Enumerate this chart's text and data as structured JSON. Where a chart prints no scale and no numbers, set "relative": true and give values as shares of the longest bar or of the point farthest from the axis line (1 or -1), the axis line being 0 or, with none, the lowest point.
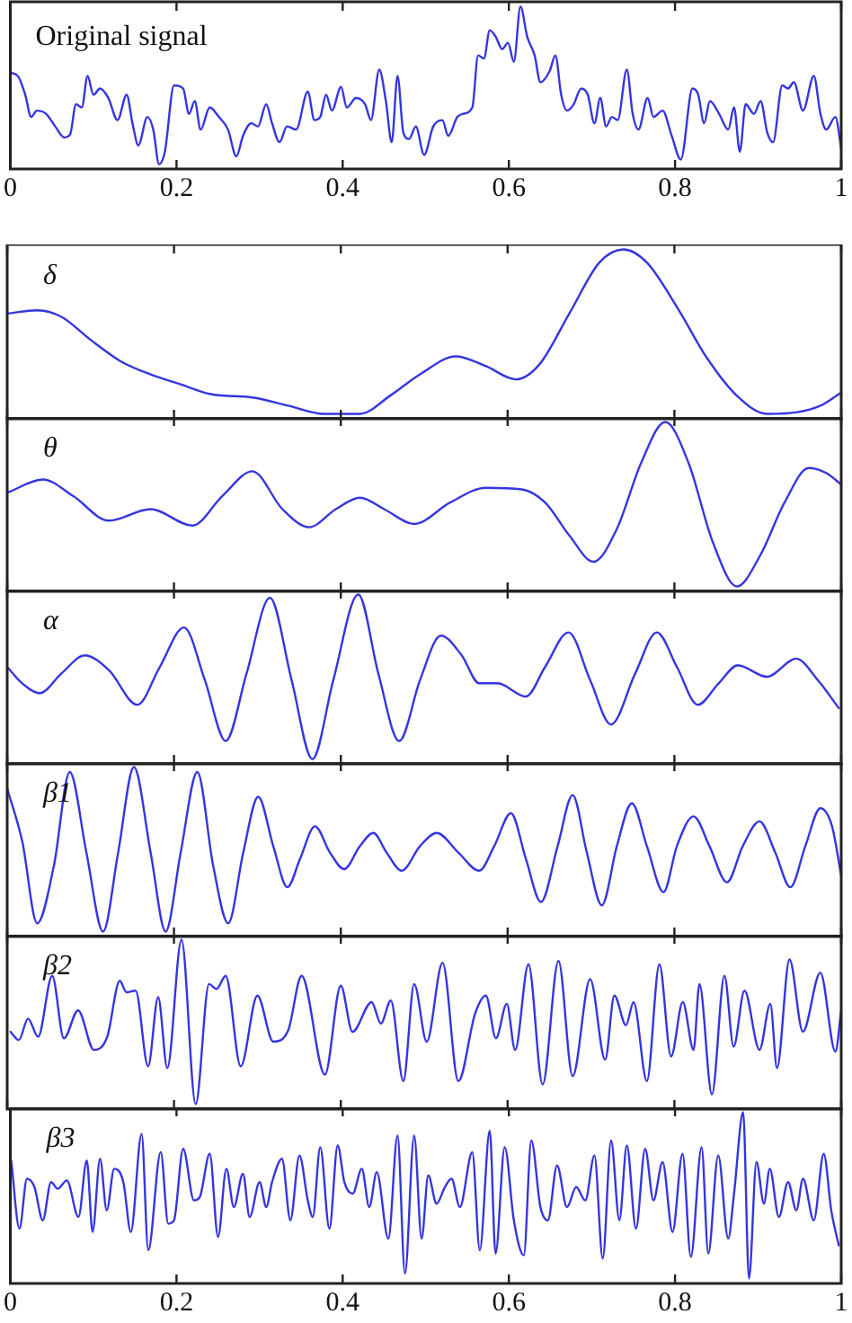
{
  "chart_data": [
    {
      "type": "line",
      "title": "Original signal",
      "relative": true,
      "xlim": [
        0,
        1
      ],
      "xticks": [
        0,
        0.2,
        0.4,
        0.6,
        0.8,
        1
      ],
      "tick_labels": "x",
      "series": [
        {
          "color": "#3535e0",
          "x": [
            0,
            0.009,
            0.018,
            0.025,
            0.032,
            0.043,
            0.054,
            0.065,
            0.072,
            0.079,
            0.086,
            0.093,
            0.1,
            0.108,
            0.118,
            0.129,
            0.14,
            0.147,
            0.154,
            0.165,
            0.172,
            0.179,
            0.186,
            0.197,
            0.208,
            0.215,
            0.222,
            0.229,
            0.24,
            0.251,
            0.262,
            0.272,
            0.28,
            0.29,
            0.298,
            0.308,
            0.315,
            0.324,
            0.333,
            0.344,
            0.358,
            0.366,
            0.373,
            0.38,
            0.387,
            0.398,
            0.405,
            0.416,
            0.427,
            0.434,
            0.444,
            0.452,
            0.459,
            0.466,
            0.473,
            0.48,
            0.488,
            0.498,
            0.509,
            0.52,
            0.527,
            0.538,
            0.545,
            0.556,
            0.563,
            0.57,
            0.577,
            0.584,
            0.592,
            0.599,
            0.606,
            0.614,
            0.622,
            0.631,
            0.638,
            0.649,
            0.656,
            0.663,
            0.67,
            0.678,
            0.687,
            0.695,
            0.703,
            0.71,
            0.717,
            0.724,
            0.731,
            0.742,
            0.749,
            0.756,
            0.767,
            0.774,
            0.785,
            0.796,
            0.807,
            0.821,
            0.828,
            0.835,
            0.842,
            0.853,
            0.864,
            0.871,
            0.878,
            0.885,
            0.895,
            0.903,
            0.911,
            0.918,
            0.929,
            0.936,
            0.943,
            0.954,
            0.967,
            0.975,
            0.982,
            0.993,
            1
          ],
          "values": [
            0.58,
            0.56,
            0.44,
            0.3,
            0.34,
            0.32,
            0.24,
            0.17,
            0.19,
            0.38,
            0.36,
            0.56,
            0.44,
            0.48,
            0.42,
            0.28,
            0.44,
            0.26,
            0.12,
            0.3,
            0.22,
            0,
            0.08,
            0.5,
            0.48,
            0.32,
            0.4,
            0.22,
            0.36,
            0.3,
            0.22,
            0.05,
            0.18,
            0.26,
            0.24,
            0.38,
            0.26,
            0.14,
            0.24,
            0.22,
            0.46,
            0.28,
            0.3,
            0.44,
            0.34,
            0.49,
            0.36,
            0.42,
            0.38,
            0.28,
            0.6,
            0.4,
            0.14,
            0.56,
            0.2,
            0.16,
            0.24,
            0.06,
            0.24,
            0.28,
            0.18,
            0.3,
            0.32,
            0.36,
            0.69,
            0.67,
            0.85,
            0.81,
            0.73,
            0.77,
            0.65,
            1,
            0.81,
            0.69,
            0.52,
            0.59,
            0.69,
            0.44,
            0.34,
            0.38,
            0.48,
            0.44,
            0.26,
            0.42,
            0.24,
            0.3,
            0.28,
            0.6,
            0.32,
            0.22,
            0.42,
            0.3,
            0.34,
            0.18,
            0.03,
            0.48,
            0.44,
            0.26,
            0.4,
            0.32,
            0.22,
            0.36,
            0.08,
            0.38,
            0.32,
            0.4,
            0.2,
            0.14,
            0.5,
            0.48,
            0.52,
            0.34,
            0.56,
            0.32,
            0.22,
            0.3,
            0.1
          ]
        }
      ]
    },
    {
      "type": "line",
      "title": "δ",
      "relative": true,
      "xlim": [
        0,
        1
      ],
      "xticks": [
        0,
        0.2,
        0.4,
        0.6,
        0.8,
        1
      ],
      "tick_labels": false,
      "series": [
        {
          "color": "#3535e0",
          "x": [
            0,
            0.036,
            0.065,
            0.1,
            0.136,
            0.172,
            0.208,
            0.244,
            0.294,
            0.337,
            0.38,
            0.423,
            0.459,
            0.495,
            0.538,
            0.574,
            0.61,
            0.638,
            0.674,
            0.71,
            0.739,
            0.767,
            0.803,
            0.839,
            0.875,
            0.911,
            0.947,
            0.975,
            1
          ],
          "values": [
            0.61,
            0.63,
            0.59,
            0.45,
            0.32,
            0.24,
            0.18,
            0.12,
            0.1,
            0.05,
            0,
            0,
            0.11,
            0.24,
            0.35,
            0.29,
            0.21,
            0.3,
            0.61,
            0.92,
            1,
            0.92,
            0.65,
            0.34,
            0.11,
            0,
            0.01,
            0.05,
            0.13
          ]
        }
      ]
    },
    {
      "type": "line",
      "title": "θ",
      "relative": true,
      "xlim": [
        0,
        1
      ],
      "xticks": [
        0,
        0.2,
        0.4,
        0.6,
        0.8,
        1
      ],
      "tick_labels": false,
      "series": [
        {
          "color": "#3535e0",
          "x": [
            0,
            0.043,
            0.079,
            0.122,
            0.172,
            0.222,
            0.258,
            0.294,
            0.33,
            0.362,
            0.394,
            0.423,
            0.452,
            0.488,
            0.531,
            0.574,
            0.617,
            0.645,
            0.674,
            0.703,
            0.731,
            0.76,
            0.789,
            0.817,
            0.846,
            0.875,
            0.903,
            0.932,
            0.961,
            0.982,
            1
          ],
          "values": [
            0.57,
            0.65,
            0.55,
            0.4,
            0.47,
            0.37,
            0.55,
            0.7,
            0.47,
            0.36,
            0.47,
            0.54,
            0.47,
            0.38,
            0.51,
            0.6,
            0.59,
            0.51,
            0.31,
            0.15,
            0.35,
            0.75,
            1,
            0.75,
            0.27,
            0,
            0.19,
            0.51,
            0.72,
            0.69,
            0.62
          ]
        }
      ]
    },
    {
      "type": "line",
      "title": "α",
      "relative": true,
      "xlim": [
        0,
        1
      ],
      "xticks": [
        0,
        0.2,
        0.4,
        0.6,
        0.8,
        1
      ],
      "tick_labels": false,
      "series": [
        {
          "color": "#3535e0",
          "x": [
            0,
            0.018,
            0.039,
            0.065,
            0.093,
            0.122,
            0.156,
            0.183,
            0.212,
            0.237,
            0.262,
            0.287,
            0.315,
            0.341,
            0.366,
            0.391,
            0.421,
            0.445,
            0.47,
            0.495,
            0.52,
            0.545,
            0.566,
            0.588,
            0.622,
            0.645,
            0.673,
            0.699,
            0.724,
            0.753,
            0.779,
            0.803,
            0.828,
            0.853,
            0.876,
            0.911,
            0.946,
            0.972,
            0.997
          ],
          "values": [
            0.56,
            0.46,
            0.4,
            0.52,
            0.63,
            0.54,
            0.33,
            0.56,
            0.8,
            0.48,
            0.11,
            0.52,
            0.98,
            0.48,
            0,
            0.48,
            1,
            0.52,
            0.11,
            0.48,
            0.75,
            0.63,
            0.46,
            0.46,
            0.38,
            0.56,
            0.77,
            0.48,
            0.21,
            0.52,
            0.77,
            0.56,
            0.33,
            0.46,
            0.57,
            0.5,
            0.61,
            0.48,
            0.31
          ]
        }
      ]
    },
    {
      "type": "line",
      "title": "β1",
      "relative": true,
      "xlim": [
        0,
        1
      ],
      "xticks": [
        0,
        0.2,
        0.4,
        0.6,
        0.8,
        1
      ],
      "tick_labels": false,
      "series": [
        {
          "color": "#3535e0",
          "x": [
            0,
            0.018,
            0.036,
            0.056,
            0.075,
            0.095,
            0.115,
            0.133,
            0.152,
            0.172,
            0.19,
            0.208,
            0.228,
            0.247,
            0.265,
            0.283,
            0.301,
            0.319,
            0.336,
            0.351,
            0.369,
            0.387,
            0.404,
            0.423,
            0.439,
            0.455,
            0.473,
            0.495,
            0.515,
            0.541,
            0.566,
            0.584,
            0.604,
            0.622,
            0.64,
            0.66,
            0.678,
            0.695,
            0.713,
            0.731,
            0.749,
            0.767,
            0.787,
            0.803,
            0.823,
            0.842,
            0.863,
            0.882,
            0.902,
            0.921,
            0.939,
            0.957,
            0.975,
            0.989,
            1
          ],
          "values": [
            0.87,
            0.55,
            0.05,
            0.4,
            0.97,
            0.48,
            0,
            0.48,
            1,
            0.48,
            0,
            0.48,
            0.97,
            0.4,
            0.05,
            0.48,
            0.82,
            0.52,
            0.27,
            0.44,
            0.64,
            0.48,
            0.38,
            0.52,
            0.6,
            0.48,
            0.37,
            0.52,
            0.6,
            0.48,
            0.37,
            0.52,
            0.72,
            0.44,
            0.18,
            0.52,
            0.83,
            0.48,
            0.16,
            0.52,
            0.78,
            0.52,
            0.24,
            0.52,
            0.7,
            0.52,
            0.3,
            0.52,
            0.67,
            0.48,
            0.27,
            0.52,
            0.75,
            0.64,
            0.34
          ]
        }
      ]
    },
    {
      "type": "line",
      "title": "β2",
      "relative": true,
      "xlim": [
        0,
        1
      ],
      "xticks": [
        0,
        0.2,
        0.4,
        0.6,
        0.8,
        1
      ],
      "tick_labels": false,
      "series": [
        {
          "color": "#3535e0",
          "x": [
            0.004,
            0.014,
            0.025,
            0.037,
            0.054,
            0.068,
            0.085,
            0.104,
            0.12,
            0.135,
            0.143,
            0.154,
            0.169,
            0.181,
            0.192,
            0.209,
            0.226,
            0.242,
            0.251,
            0.262,
            0.28,
            0.3,
            0.319,
            0.337,
            0.353,
            0.381,
            0.4,
            0.414,
            0.437,
            0.448,
            0.46,
            0.475,
            0.488,
            0.503,
            0.522,
            0.541,
            0.561,
            0.574,
            0.586,
            0.599,
            0.609,
            0.625,
            0.642,
            0.661,
            0.678,
            0.699,
            0.717,
            0.728,
            0.742,
            0.751,
            0.767,
            0.782,
            0.796,
            0.81,
            0.823,
            0.83,
            0.845,
            0.86,
            0.871,
            0.884,
            0.902,
            0.915,
            0.923,
            0.938,
            0.954,
            0.975,
            0.993,
            1
          ],
          "values": [
            0.44,
            0.39,
            0.52,
            0.41,
            0.78,
            0.4,
            0.57,
            0.33,
            0.41,
            0.75,
            0.68,
            0.69,
            0.23,
            0.65,
            0.22,
            1,
            0,
            0.73,
            0.7,
            0.78,
            0.23,
            0.66,
            0.38,
            0.45,
            0.78,
            0.18,
            0.72,
            0.44,
            0.62,
            0.49,
            0.63,
            0.14,
            0.73,
            0.38,
            0.86,
            0.14,
            0.55,
            0.66,
            0.4,
            0.61,
            0.33,
            0.85,
            0.12,
            0.87,
            0.17,
            0.76,
            0.27,
            0.66,
            0.48,
            0.62,
            0.14,
            0.85,
            0.29,
            0.62,
            0.33,
            0.73,
            0.06,
            0.78,
            0.35,
            0.69,
            0.33,
            0.61,
            0.22,
            0.88,
            0.44,
            0.8,
            0.32,
            0.57
          ]
        }
      ]
    },
    {
      "type": "line",
      "title": "β3",
      "relative": true,
      "xlim": [
        0,
        1
      ],
      "xticks": [
        0,
        0.2,
        0.4,
        0.6,
        0.8,
        1
      ],
      "tick_labels": "x",
      "series": [
        {
          "color": "#3535e0",
          "x": [
            0.001,
            0.011,
            0.02,
            0.029,
            0.039,
            0.049,
            0.057,
            0.068,
            0.082,
            0.092,
            0.099,
            0.108,
            0.116,
            0.125,
            0.136,
            0.145,
            0.158,
            0.166,
            0.181,
            0.19,
            0.197,
            0.208,
            0.221,
            0.228,
            0.24,
            0.25,
            0.26,
            0.269,
            0.28,
            0.288,
            0.3,
            0.308,
            0.315,
            0.327,
            0.337,
            0.348,
            0.358,
            0.364,
            0.373,
            0.384,
            0.394,
            0.402,
            0.412,
            0.423,
            0.432,
            0.441,
            0.455,
            0.466,
            0.475,
            0.486,
            0.495,
            0.503,
            0.513,
            0.523,
            0.531,
            0.541,
            0.556,
            0.565,
            0.577,
            0.584,
            0.595,
            0.606,
            0.618,
            0.627,
            0.638,
            0.647,
            0.658,
            0.67,
            0.681,
            0.692,
            0.703,
            0.713,
            0.723,
            0.733,
            0.742,
            0.753,
            0.764,
            0.774,
            0.785,
            0.797,
            0.809,
            0.819,
            0.832,
            0.84,
            0.852,
            0.864,
            0.871,
            0.882,
            0.889,
            0.898,
            0.907,
            0.914,
            0.925,
            0.936,
            0.946,
            0.954,
            0.967,
            0.979,
            0.988,
            0.997
          ],
          "values": [
            0.71,
            0.3,
            0.6,
            0.55,
            0.35,
            0.58,
            0.54,
            0.59,
            0.37,
            0.71,
            0.28,
            0.72,
            0.41,
            0.66,
            0.58,
            0.28,
            0.87,
            0.17,
            0.76,
            0.33,
            0.35,
            0.78,
            0.47,
            0.49,
            0.75,
            0.25,
            0.66,
            0.43,
            0.63,
            0.37,
            0.58,
            0.43,
            0.58,
            0.72,
            0.35,
            0.74,
            0.47,
            0.37,
            0.79,
            0.3,
            0.8,
            0.58,
            0.51,
            0.66,
            0.43,
            0.64,
            0.24,
            0.86,
            0.03,
            0.86,
            0.24,
            0.62,
            0.45,
            0.55,
            0.6,
            0.43,
            0.76,
            0.17,
            0.89,
            0.15,
            0.79,
            0.35,
            0.14,
            0.83,
            0.43,
            0.35,
            0.68,
            0.43,
            0.55,
            0.47,
            0.74,
            0.12,
            0.83,
            0.35,
            0.8,
            0.3,
            0.78,
            0.47,
            0.7,
            0.28,
            0.75,
            0.13,
            0.79,
            0.15,
            0.74,
            0.24,
            0.51,
            1,
            0,
            0.7,
            0.45,
            0.66,
            0.37,
            0.58,
            0.41,
            0.6,
            0.35,
            0.75,
            0.41,
            0.2
          ]
        }
      ]
    }
  ]
}
